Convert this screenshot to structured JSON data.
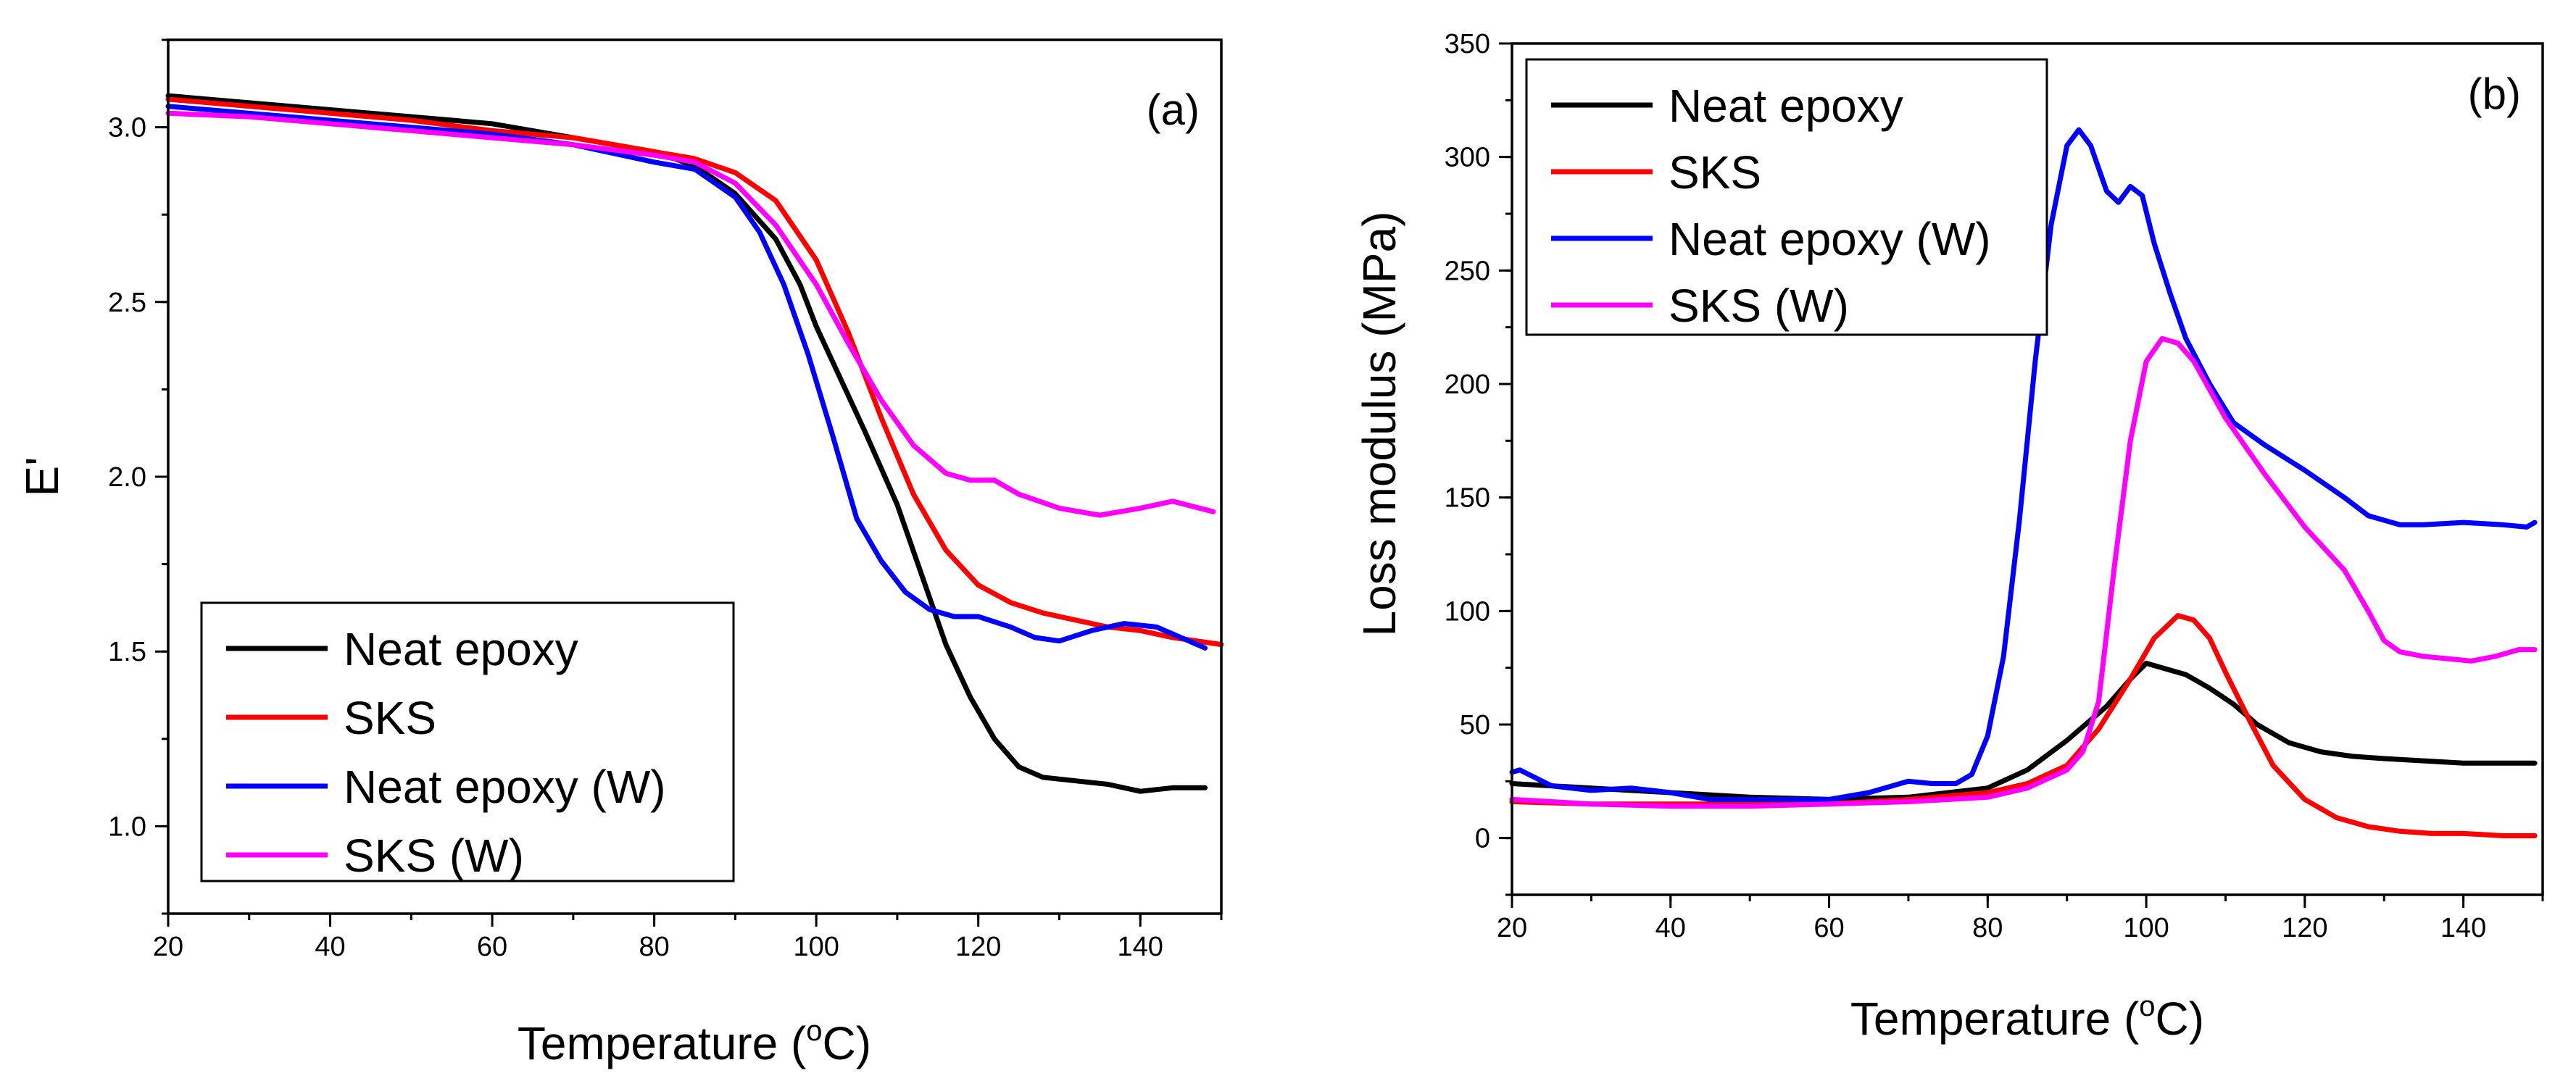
{
  "colors": {
    "black": "#000000",
    "red": "#ff0000",
    "blue": "#0000ff",
    "magenta": "#ff00ff"
  },
  "chart_data": [
    {
      "type": "line",
      "panel_label": "(a)",
      "title": "",
      "xlabel": "Temperature (",
      "xlabel_sup": "o",
      "xlabel_end": "C)",
      "ylabel": "E'",
      "xlim": [
        20,
        150
      ],
      "ylim": [
        0.75,
        3.25
      ],
      "xticks": [
        20,
        40,
        60,
        80,
        100,
        120,
        140
      ],
      "yticks": [
        1.0,
        1.5,
        2.0,
        2.5,
        3.0
      ],
      "ytick_labels": [
        "1.0",
        "1.5",
        "2.0",
        "2.5",
        "3.0"
      ],
      "legend_position": "bottom-left",
      "series": [
        {
          "name": "Neat epoxy",
          "color": "#000000",
          "x": [
            20,
            30,
            40,
            50,
            60,
            70,
            80,
            85,
            90,
            95,
            98,
            100,
            103,
            106,
            110,
            113,
            116,
            119,
            122,
            125,
            128,
            132,
            136,
            140,
            144,
            148
          ],
          "y": [
            3.09,
            3.07,
            3.05,
            3.03,
            3.01,
            2.97,
            2.93,
            2.89,
            2.81,
            2.68,
            2.55,
            2.43,
            2.28,
            2.13,
            1.92,
            1.72,
            1.52,
            1.37,
            1.25,
            1.17,
            1.14,
            1.13,
            1.12,
            1.1,
            1.11,
            1.11
          ]
        },
        {
          "name": "SKS",
          "color": "#ff0000",
          "x": [
            20,
            30,
            40,
            50,
            60,
            70,
            80,
            85,
            90,
            95,
            100,
            104,
            108,
            112,
            116,
            120,
            124,
            128,
            132,
            136,
            140,
            144,
            150
          ],
          "y": [
            3.08,
            3.06,
            3.04,
            3.02,
            2.99,
            2.97,
            2.93,
            2.91,
            2.87,
            2.79,
            2.62,
            2.41,
            2.17,
            1.95,
            1.79,
            1.69,
            1.64,
            1.61,
            1.59,
            1.57,
            1.56,
            1.54,
            1.52
          ]
        },
        {
          "name": "Neat epoxy (W)",
          "color": "#0000ff",
          "x": [
            20,
            30,
            40,
            50,
            60,
            70,
            80,
            85,
            90,
            93,
            96,
            99,
            102,
            105,
            108,
            111,
            114,
            117,
            120,
            124,
            127,
            130,
            134,
            138,
            142,
            146,
            148
          ],
          "y": [
            3.06,
            3.04,
            3.02,
            3.0,
            2.98,
            2.95,
            2.9,
            2.88,
            2.8,
            2.7,
            2.55,
            2.35,
            2.12,
            1.88,
            1.76,
            1.67,
            1.62,
            1.6,
            1.6,
            1.57,
            1.54,
            1.53,
            1.56,
            1.58,
            1.57,
            1.53,
            1.51
          ]
        },
        {
          "name": "SKS (W)",
          "color": "#ff00ff",
          "x": [
            20,
            30,
            40,
            50,
            60,
            70,
            80,
            85,
            90,
            95,
            100,
            104,
            108,
            112,
            116,
            119,
            122,
            125,
            130,
            135,
            140,
            144,
            149
          ],
          "y": [
            3.04,
            3.03,
            3.01,
            2.99,
            2.97,
            2.95,
            2.92,
            2.9,
            2.84,
            2.72,
            2.55,
            2.38,
            2.22,
            2.09,
            2.01,
            1.99,
            1.99,
            1.95,
            1.91,
            1.89,
            1.91,
            1.93,
            1.9
          ]
        }
      ]
    },
    {
      "type": "line",
      "panel_label": "(b)",
      "title": "",
      "xlabel": "Temperature (",
      "xlabel_sup": "o",
      "xlabel_end": "C)",
      "ylabel": "Loss modulus (MPa)",
      "xlim": [
        20,
        150
      ],
      "ylim": [
        -25,
        350
      ],
      "xticks": [
        20,
        40,
        60,
        80,
        100,
        120,
        140
      ],
      "yticks": [
        0,
        50,
        100,
        150,
        200,
        250,
        300,
        350
      ],
      "ytick_labels": [
        "0",
        "50",
        "100",
        "150",
        "200",
        "250",
        "300",
        "350"
      ],
      "legend_position": "top-left",
      "series": [
        {
          "name": "Neat epoxy",
          "color": "#000000",
          "x": [
            20,
            30,
            40,
            50,
            60,
            70,
            80,
            85,
            90,
            95,
            98,
            100,
            102,
            105,
            108,
            111,
            114,
            118,
            122,
            126,
            130,
            135,
            140,
            145,
            149
          ],
          "y": [
            24,
            22,
            20,
            18,
            17,
            18,
            22,
            30,
            43,
            58,
            70,
            77,
            75,
            72,
            66,
            59,
            50,
            42,
            38,
            36,
            35,
            34,
            33,
            33,
            33
          ]
        },
        {
          "name": "SKS",
          "color": "#ff0000",
          "x": [
            20,
            30,
            40,
            50,
            60,
            70,
            80,
            85,
            90,
            94,
            98,
            101,
            104,
            106,
            108,
            110,
            113,
            116,
            120,
            124,
            128,
            132,
            136,
            140,
            145,
            149
          ],
          "y": [
            16,
            15,
            15,
            15,
            15,
            17,
            20,
            24,
            32,
            48,
            70,
            88,
            98,
            96,
            88,
            73,
            52,
            32,
            17,
            9,
            5,
            3,
            2,
            2,
            1,
            1
          ]
        },
        {
          "name": "Neat epoxy (W)",
          "color": "#0000ff",
          "x": [
            20,
            21,
            25,
            30,
            35,
            40,
            45,
            50,
            60,
            65,
            70,
            73,
            76,
            78,
            80,
            82,
            84,
            86,
            88,
            90,
            91.5,
            93,
            95,
            96.5,
            98,
            99.5,
            101,
            103,
            105,
            108,
            111,
            115,
            120,
            125,
            128,
            132,
            135,
            140,
            145,
            148,
            149
          ],
          "y": [
            29,
            30,
            23,
            21,
            22,
            20,
            17,
            17,
            17,
            20,
            25,
            24,
            24,
            28,
            45,
            80,
            140,
            210,
            270,
            305,
            312,
            305,
            285,
            280,
            287,
            283,
            262,
            240,
            220,
            200,
            183,
            173,
            162,
            150,
            142,
            138,
            138,
            139,
            138,
            137,
            139
          ]
        },
        {
          "name": "SKS (W)",
          "color": "#ff00ff",
          "x": [
            20,
            30,
            40,
            50,
            60,
            70,
            80,
            85,
            90,
            92,
            94,
            96,
            98,
            100,
            102,
            104,
            106,
            110,
            115,
            120,
            125,
            128,
            130,
            132,
            135,
            138,
            141,
            144,
            147,
            149
          ],
          "y": [
            17,
            15,
            14,
            14,
            15,
            16,
            18,
            22,
            30,
            38,
            60,
            120,
            175,
            210,
            220,
            218,
            210,
            185,
            160,
            137,
            118,
            100,
            87,
            82,
            80,
            79,
            78,
            80,
            83,
            83
          ]
        }
      ]
    }
  ]
}
